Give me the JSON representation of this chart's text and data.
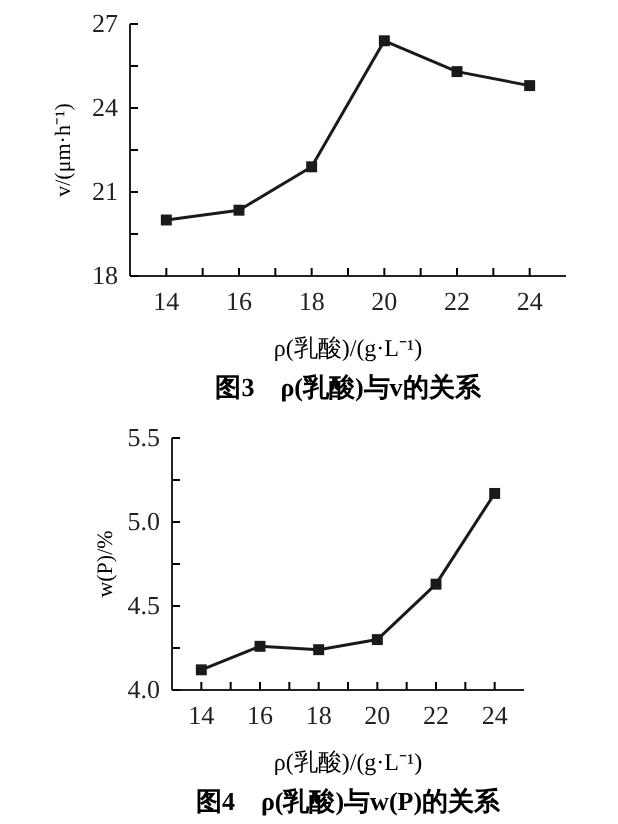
{
  "chart_data": [
    {
      "type": "line",
      "title": "图3　ρ(乳酸)与v的关系",
      "xlabel": "ρ(乳酸)/(g·L⁻¹)",
      "ylabel": "v/(μm·h⁻¹)",
      "x": [
        14,
        16,
        18,
        20,
        22,
        24
      ],
      "series": [
        {
          "color": "#1a1a1a",
          "values": [
            20.0,
            20.35,
            21.9,
            26.4,
            25.3,
            24.8
          ]
        }
      ],
      "xlim": [
        13,
        25
      ],
      "xticks": [
        14,
        {
          "value": 15,
          "label": null
        },
        16,
        {
          "value": 17,
          "label": null
        },
        18,
        {
          "value": 19,
          "label": null
        },
        20,
        {
          "value": 21,
          "label": null
        },
        22,
        {
          "value": 23,
          "label": null
        },
        24
      ],
      "ylim": [
        18,
        27
      ],
      "yticks": [
        18,
        {
          "value": 19.5,
          "label": null
        },
        21,
        {
          "value": 22.5,
          "label": null
        },
        24,
        {
          "value": 25.5,
          "label": null
        },
        27
      ],
      "grid": false,
      "marker": "square",
      "line_style": "solid"
    },
    {
      "type": "line",
      "title": "图4　ρ(乳酸)与w(P)的关系",
      "xlabel": "ρ(乳酸)/(g·L⁻¹)",
      "ylabel": "w(P)/%",
      "x": [
        14,
        16,
        18,
        20,
        22,
        24
      ],
      "series": [
        {
          "color": "#1a1a1a",
          "values": [
            4.12,
            4.26,
            4.24,
            4.3,
            4.63,
            5.17
          ]
        }
      ],
      "xlim": [
        13,
        25
      ],
      "xticks": [
        14,
        {
          "value": 15,
          "label": null
        },
        16,
        {
          "value": 17,
          "label": null
        },
        18,
        {
          "value": 19,
          "label": null
        },
        20,
        {
          "value": 21,
          "label": null
        },
        22,
        {
          "value": 23,
          "label": null
        },
        24
      ],
      "ylim": [
        4.0,
        5.5
      ],
      "yticks": [
        {
          "value": 4.0,
          "label": "4.0"
        },
        {
          "value": 4.25,
          "label": null
        },
        {
          "value": 4.5,
          "label": "4.5"
        },
        {
          "value": 4.75,
          "label": null
        },
        {
          "value": 5.0,
          "label": "5.0"
        },
        {
          "value": 5.25,
          "label": null
        },
        {
          "value": 5.5,
          "label": "5.5"
        }
      ],
      "grid": false,
      "marker": "square",
      "line_style": "solid"
    }
  ]
}
